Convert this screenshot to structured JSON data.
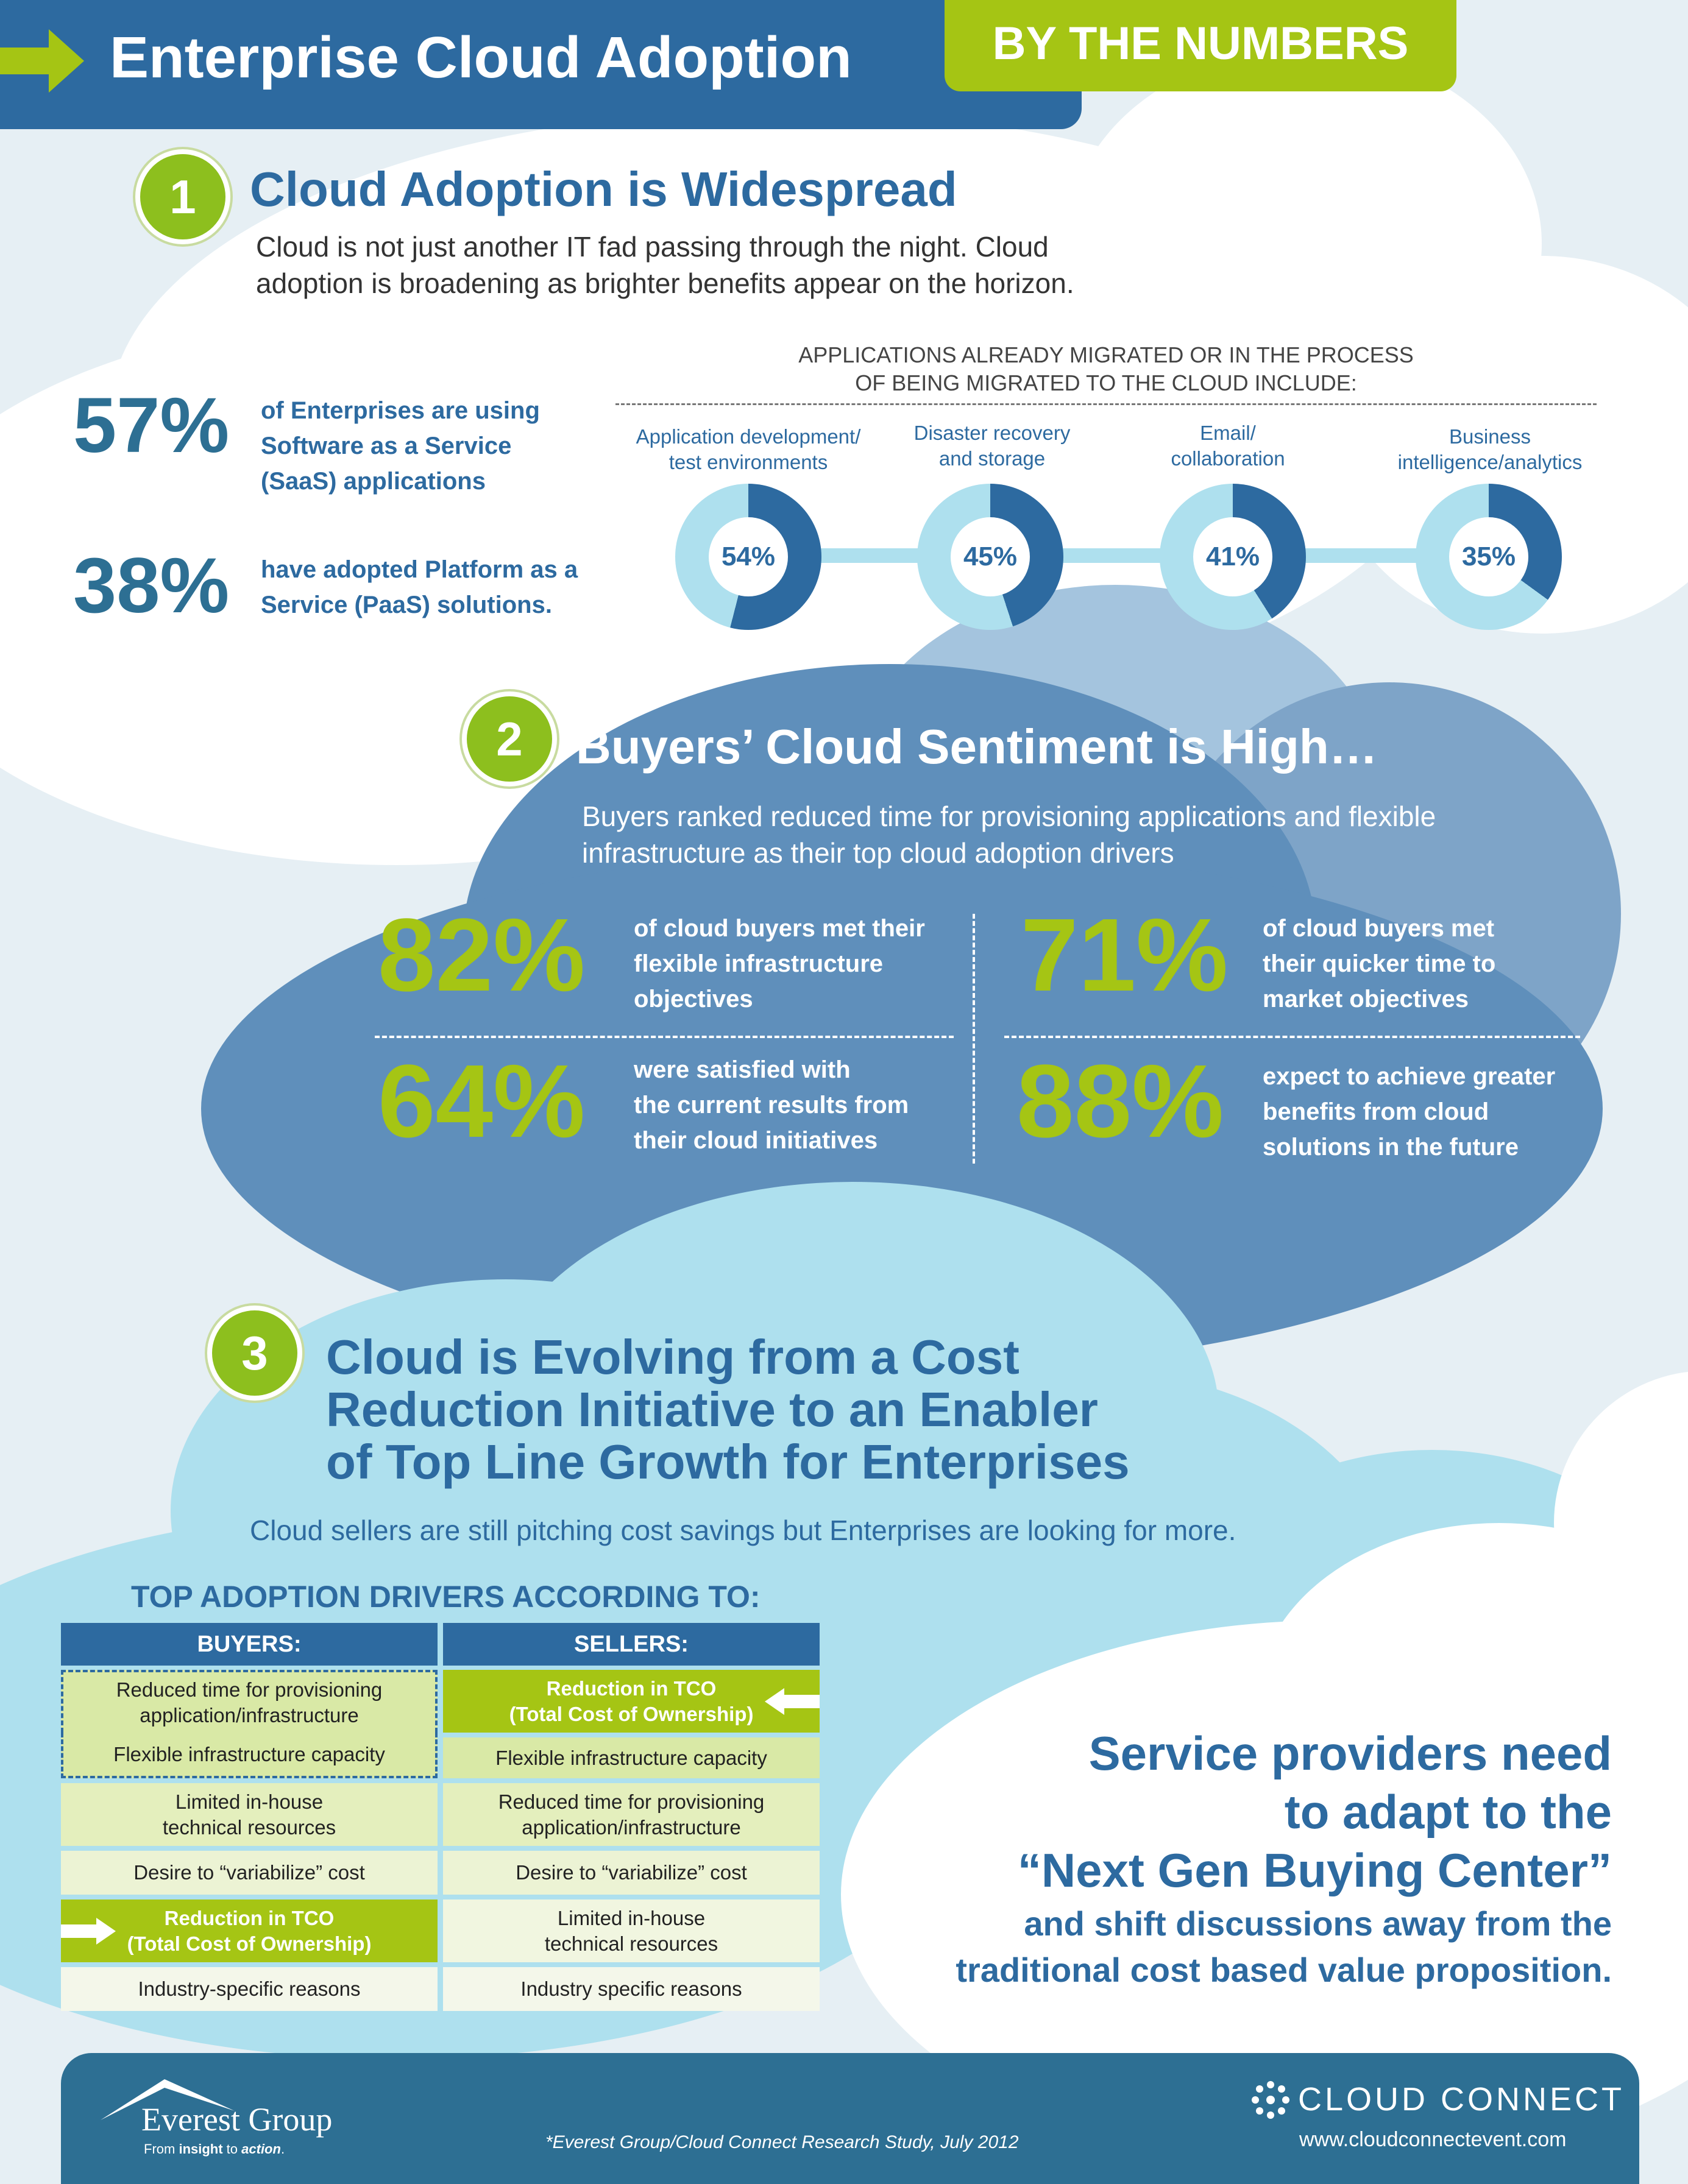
{
  "header": {
    "title": "Enterprise Cloud Adoption",
    "subtitle": "BY THE NUMBERS"
  },
  "colors": {
    "primary_blue": "#2d6aa0",
    "accent_green": "#a5c514",
    "light_blue": "#aee0ee",
    "mid_blue": "#5f8fbb"
  },
  "section1": {
    "number": "1",
    "title": "Cloud Adoption is Widespread",
    "lead": [
      "Cloud is not just another IT fad passing through the night. Cloud",
      "adoption is broadening as brighter benefits appear on the horizon."
    ],
    "stats": [
      {
        "pct": "57%",
        "text": [
          "of Enterprises are using",
          "Software as a Service",
          "(SaaS) applications"
        ]
      },
      {
        "pct": "38%",
        "text": [
          "have adopted Platform as a",
          "Service (PaaS) solutions."
        ]
      }
    ],
    "apps_heading": [
      "APPLICATIONS ALREADY MIGRATED OR IN THE PROCESS",
      "OF BEING MIGRATED TO THE CLOUD INCLUDE:"
    ],
    "apps": [
      {
        "label": [
          "Application development/",
          "test environments"
        ],
        "pct_label": "54%",
        "value": 54
      },
      {
        "label": [
          "Disaster recovery",
          "and storage"
        ],
        "pct_label": "45%",
        "value": 45
      },
      {
        "label": [
          "Email/",
          "collaboration"
        ],
        "pct_label": "41%",
        "value": 41
      },
      {
        "label": [
          "Business",
          "intelligence/analytics"
        ],
        "pct_label": "35%",
        "value": 35
      }
    ]
  },
  "section2": {
    "number": "2",
    "title": "Buyers’ Cloud Sentiment is High…",
    "lead": [
      "Buyers ranked reduced time for provisioning applications and flexible",
      "infrastructure as their top cloud adoption drivers"
    ],
    "stats": [
      {
        "pct": "82%",
        "text": [
          "of cloud buyers met their",
          "flexible infrastructure",
          "objectives"
        ]
      },
      {
        "pct": "71%",
        "text": [
          "of cloud buyers met",
          "their quicker time to",
          "market objectives"
        ]
      },
      {
        "pct": "64%",
        "text": [
          "were satisfied with",
          "the current results from",
          "their cloud initiatives"
        ]
      },
      {
        "pct": "88%",
        "text": [
          "expect to achieve greater",
          "benefits from cloud",
          "solutions in the future"
        ]
      }
    ]
  },
  "section3": {
    "number": "3",
    "title": [
      "Cloud is Evolving from a Cost",
      "Reduction Initiative to an Enabler",
      "of Top Line Growth for Enterprises"
    ],
    "lead": "Cloud sellers are still pitching cost savings but Enterprises are looking for more.",
    "table_heading": "TOP ADOPTION DRIVERS ACCORDING TO:",
    "buyers_head": "BUYERS:",
    "sellers_head": "SELLERS:",
    "buyers": [
      [
        "Reduced time for provisioning",
        "application/infrastructure"
      ],
      [
        "Flexible infrastructure capacity"
      ],
      [
        "Limited in-house",
        "technical resources"
      ],
      [
        "Desire to “variabilize” cost"
      ],
      [
        "Reduction in TCO",
        "(Total Cost of Ownership)"
      ],
      [
        "Industry-specific reasons"
      ]
    ],
    "sellers": [
      [
        "Reduction in TCO",
        "(Total Cost of Ownership)"
      ],
      [
        "Flexible infrastructure capacity"
      ],
      [
        "Reduced time for provisioning",
        "application/infrastructure"
      ],
      [
        "Desire to “variabilize” cost"
      ],
      [
        "Limited in-house",
        "technical resources"
      ],
      [
        "Industry specific reasons"
      ]
    ],
    "callout_big": [
      "Service providers need",
      "to adapt to the",
      "“Next Gen Buying Center”"
    ],
    "callout_small": [
      "and shift discussions away from the",
      "traditional cost based value proposition."
    ]
  },
  "footer": {
    "brand": "Everest Group",
    "tagline_pre": "From ",
    "tagline_mid": "insight",
    "tagline_to": " to ",
    "tagline_end": "action",
    "tagline_dot": ".",
    "source": "*Everest Group/Cloud Connect Research Study, July 2012",
    "partner": "CLOUD CONNECT",
    "url": "www.cloudconnectevent.com"
  }
}
